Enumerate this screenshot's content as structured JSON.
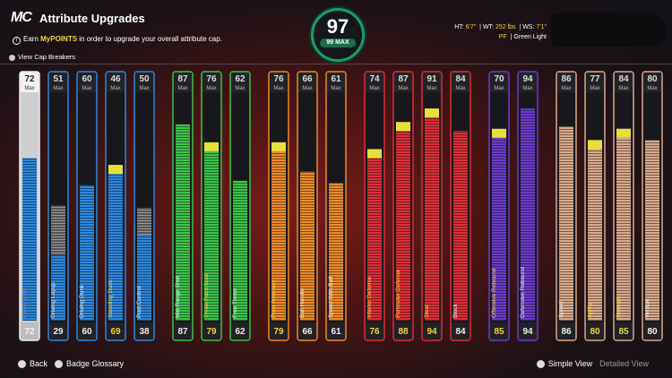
{
  "header": {
    "logo": "MC",
    "title": "Attribute Upgrades",
    "info_prefix": "Earn",
    "info_highlight": "MyPOINTS",
    "info_suffix": "in order to upgrade your overall attribute cap."
  },
  "overall": {
    "value": 97,
    "max_label": "99 MAX"
  },
  "player": {
    "height_label": "HT:",
    "height": "6'7\"",
    "weight_label": "WT:",
    "weight": "252 lbs",
    "wingspan_label": "WS:",
    "wingspan": "7'1\"",
    "position": "PF",
    "shooting": "Green Light"
  },
  "cap_breakers": "View Cap Breakers",
  "max_label": "Max",
  "groups": [
    {
      "color": "#2e87dc",
      "attributes": [
        {
          "name": "Close Shot",
          "max": 72,
          "value": 72,
          "upgraded": false,
          "selected": true
        },
        {
          "name": "Driving Layup",
          "max": 51,
          "value": 29,
          "upgraded": false,
          "selected": false
        },
        {
          "name": "Driving Dunk",
          "max": 60,
          "value": 60,
          "upgraded": false,
          "selected": false
        },
        {
          "name": "Standing Dunk",
          "max": 46,
          "value": 69,
          "upgraded": true,
          "selected": false
        },
        {
          "name": "Post Control",
          "max": 50,
          "value": 38,
          "upgraded": false,
          "selected": false
        }
      ]
    },
    {
      "color": "#3cc24a",
      "attributes": [
        {
          "name": "Mid-Range Shot",
          "max": 87,
          "value": 87,
          "upgraded": false,
          "selected": false
        },
        {
          "name": "Three-Point Shot",
          "max": 76,
          "value": 79,
          "upgraded": true,
          "selected": false
        },
        {
          "name": "Free Throw",
          "max": 62,
          "value": 62,
          "upgraded": false,
          "selected": false
        }
      ]
    },
    {
      "color": "#ec8a2a",
      "attributes": [
        {
          "name": "Pass Accuracy",
          "max": 76,
          "value": 79,
          "upgraded": true,
          "selected": false
        },
        {
          "name": "Ball Handle",
          "max": 66,
          "value": 66,
          "upgraded": false,
          "selected": false
        },
        {
          "name": "Speed With Ball",
          "max": 61,
          "value": 61,
          "upgraded": false,
          "selected": false
        }
      ]
    },
    {
      "color": "#db2f38",
      "attributes": [
        {
          "name": "Interior Defense",
          "max": 74,
          "value": 76,
          "upgraded": true,
          "selected": false
        },
        {
          "name": "Perimeter Defense",
          "max": 87,
          "value": 88,
          "upgraded": true,
          "selected": false
        },
        {
          "name": "Steal",
          "max": 91,
          "value": 94,
          "upgraded": true,
          "selected": false
        },
        {
          "name": "Block",
          "max": 84,
          "value": 84,
          "upgraded": false,
          "selected": false
        }
      ]
    },
    {
      "color": "#6b3cc8",
      "attributes": [
        {
          "name": "Offensive Rebound",
          "max": 70,
          "value": 85,
          "upgraded": true,
          "selected": false
        },
        {
          "name": "Defensive Rebound",
          "max": 94,
          "value": 94,
          "upgraded": false,
          "selected": false
        }
      ]
    },
    {
      "color": "#dba88a",
      "attributes": [
        {
          "name": "Speed",
          "max": 86,
          "value": 86,
          "upgraded": false,
          "selected": false
        },
        {
          "name": "Agility",
          "max": 77,
          "value": 80,
          "upgraded": true,
          "selected": false
        },
        {
          "name": "Strength",
          "max": 84,
          "value": 85,
          "upgraded": true,
          "selected": false
        },
        {
          "name": "Vertical",
          "max": 80,
          "value": 80,
          "upgraded": false,
          "selected": false
        }
      ]
    }
  ],
  "footer": {
    "back": "Back",
    "glossary": "Badge Glossary",
    "simple_view": "Simple View",
    "detailed_view": "Detailed View"
  }
}
